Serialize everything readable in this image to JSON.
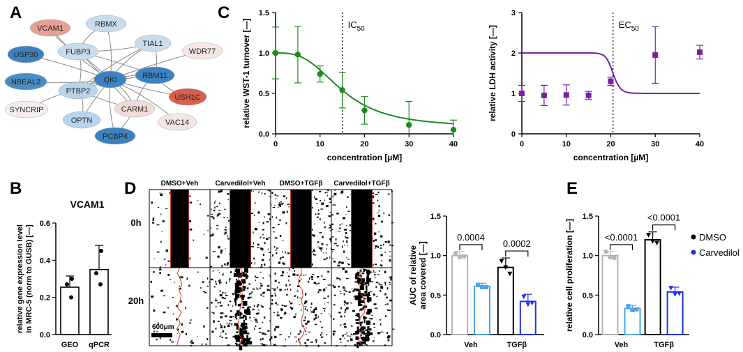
{
  "panel_labels": [
    "A",
    "B",
    "C",
    "D",
    "E"
  ],
  "network": {
    "center": "QKI",
    "nodes": [
      {
        "id": "VCAM1",
        "color": "#e8a092"
      },
      {
        "id": "RBMX",
        "color": "#c9dcec"
      },
      {
        "id": "USP30",
        "color": "#3c82c0"
      },
      {
        "id": "FUBP3",
        "color": "#c9dcec"
      },
      {
        "id": "TIAL1",
        "color": "#c9dcec"
      },
      {
        "id": "WDR77",
        "color": "#f6e6e2"
      },
      {
        "id": "NBEAL2",
        "color": "#4b8cc6"
      },
      {
        "id": "QKI",
        "color": "#3c82c0"
      },
      {
        "id": "RBM11",
        "color": "#3c82c0"
      },
      {
        "id": "PTBP2",
        "color": "#b9d3ea"
      },
      {
        "id": "USH1C",
        "color": "#d95e4b"
      },
      {
        "id": "SYNCRIP",
        "color": "#f6eeee"
      },
      {
        "id": "CARM1",
        "color": "#f3dcd6"
      },
      {
        "id": "OPTN",
        "color": "#b9d3ea"
      },
      {
        "id": "VAC14",
        "color": "#f6e6e2"
      },
      {
        "id": "PCBP4",
        "color": "#3c82c0"
      }
    ]
  },
  "chart_data": [
    {
      "id": "C1",
      "type": "line",
      "xlabel": "concentration [µM]",
      "ylabel": "relative WST-1 turnover [—]",
      "xlim": [
        0,
        40
      ],
      "ylim": [
        0,
        1.5
      ],
      "xticks": [
        0,
        10,
        20,
        30,
        40
      ],
      "yticks": [
        0.0,
        0.5,
        1.0,
        1.5
      ],
      "x": [
        0,
        5,
        10,
        15,
        20,
        30,
        40
      ],
      "y": [
        1.0,
        0.98,
        0.74,
        0.54,
        0.29,
        0.11,
        0.05
      ],
      "err": [
        0.32,
        0.35,
        0.1,
        0.22,
        0.17,
        0.29,
        0.12
      ],
      "fit": {
        "top": 1.0,
        "bottom": 0.08,
        "ic50": 15,
        "hill": 3
      },
      "refline": {
        "x": 15,
        "label": "IC",
        "sub": "50"
      },
      "color": "#1d8a1d"
    },
    {
      "id": "C2",
      "type": "line",
      "xlabel": "concentration [µM]",
      "ylabel": "relative LDH activity [—]",
      "xlim": [
        0,
        40
      ],
      "ylim": [
        0,
        3
      ],
      "xticks": [
        0,
        10,
        20,
        30,
        40
      ],
      "yticks": [
        0,
        1,
        2,
        3
      ],
      "x": [
        0,
        5,
        10,
        15,
        20,
        30,
        40
      ],
      "y": [
        1.0,
        0.95,
        0.96,
        0.95,
        1.3,
        1.95,
        2.02
      ],
      "err": [
        0.2,
        0.25,
        0.25,
        0.1,
        0.1,
        0.7,
        0.17
      ],
      "fit": {
        "top": 2.0,
        "bottom": 1.0,
        "ic50": 20.5,
        "hill": 25
      },
      "refline": {
        "x": 20.5,
        "label": "EC",
        "sub": "50"
      },
      "color": "#7b1fa2"
    },
    {
      "id": "B",
      "type": "bar",
      "title": "VCAM1",
      "ylabel": "relative gene expression level in MRC-5 (norm to GUSB) [—]",
      "categories": [
        "GEO",
        "qPCR"
      ],
      "values": [
        0.255,
        0.35
      ],
      "err": [
        0.06,
        0.13
      ],
      "points": [
        [
          0.3,
          0.27,
          0.2
        ],
        [
          0.45,
          0.33,
          0.27
        ]
      ],
      "ylim": [
        0,
        0.6
      ],
      "yticks": [
        0.0,
        0.2,
        0.4,
        0.6
      ],
      "color": "#000000"
    },
    {
      "id": "D",
      "type": "bar",
      "ylabel": "AUC of relative area covered [—]",
      "categories": [
        "Veh",
        "TGFβ"
      ],
      "series": [
        {
          "name": "DMSO",
          "values": [
            1.0,
            0.85
          ],
          "err": [
            0.05,
            0.12
          ],
          "color": "#b5b5b5"
        },
        {
          "name": "Carvedilol",
          "values": [
            0.61,
            0.42
          ],
          "err": [
            0.04,
            0.09
          ],
          "color": "#4da3ef"
        }
      ],
      "series_colors_by_group": [
        [
          "#b5b5b5",
          "#4da3ef"
        ],
        [
          "#000000",
          "#1f2ff0"
        ]
      ],
      "points": [
        [
          [
            1.03,
            0.98,
            0.99
          ],
          [
            0.63,
            0.6,
            0.6
          ]
        ],
        [
          [
            0.93,
            0.85,
            0.77
          ],
          [
            0.48,
            0.38,
            0.4
          ]
        ]
      ],
      "pvalues": [
        "0.0004",
        "0.0002"
      ],
      "ylim": [
        0,
        1.5
      ],
      "yticks": [
        0.0,
        0.5,
        1.0,
        1.5
      ]
    },
    {
      "id": "E",
      "type": "bar",
      "ylabel": "relative cell proliferation [—]",
      "categories": [
        "Veh",
        "TGFβ"
      ],
      "series": [
        {
          "name": "DMSO",
          "values": [
            1.0,
            1.2
          ],
          "err": [
            0.05,
            0.1
          ],
          "color": "#b5b5b5"
        },
        {
          "name": "Carvedilol",
          "values": [
            0.33,
            0.54
          ],
          "err": [
            0.04,
            0.06
          ],
          "color": "#4da3ef"
        }
      ],
      "series_colors_by_group": [
        [
          "#b5b5b5",
          "#4da3ef"
        ],
        [
          "#000000",
          "#1f2ff0"
        ]
      ],
      "points": [
        [
          [
            1.05,
            0.98,
            0.97
          ],
          [
            0.36,
            0.31,
            0.32
          ]
        ],
        [
          [
            1.26,
            1.18,
            1.16
          ],
          [
            0.59,
            0.51,
            0.52
          ]
        ]
      ],
      "pvalues": [
        "<0.0001",
        "<0.0001"
      ],
      "legend": [
        {
          "label": "DMSO",
          "color": "#000000"
        },
        {
          "label": "Carvedilol",
          "color": "#1f2ff0"
        }
      ],
      "ylim": [
        0,
        1.5
      ],
      "yticks": [
        0.0,
        0.5,
        1.0,
        1.5
      ]
    }
  ],
  "micrographs": {
    "columns": [
      "DMSO+Veh",
      "Carvedilol+Veh",
      "DMSO+TGFβ",
      "Carvedilol+TGFβ"
    ],
    "rows": [
      "0h",
      "20h"
    ],
    "scalebar": "600μm"
  }
}
